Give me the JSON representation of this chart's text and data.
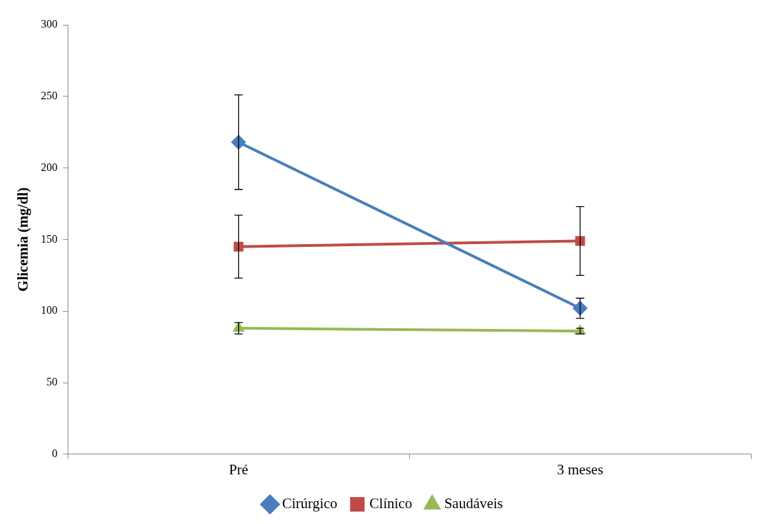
{
  "chart_data": {
    "type": "line",
    "ylabel": "Glicemia (mg/dl)",
    "categories": [
      "Pré",
      "3 meses"
    ],
    "series": [
      {
        "name": "Cirúrgico",
        "color": "#4a7ebb",
        "marker": "diamond",
        "values": [
          218,
          102
        ],
        "errors": [
          33,
          7
        ]
      },
      {
        "name": "Clínico",
        "color": "#be4b48",
        "marker": "square",
        "values": [
          145,
          149
        ],
        "errors": [
          22,
          24
        ]
      },
      {
        "name": "Saudáveis",
        "color": "#98b954",
        "marker": "triangle",
        "values": [
          88,
          86
        ],
        "errors": [
          4,
          2
        ]
      }
    ],
    "ylim": [
      0,
      300
    ],
    "yticks": [
      0,
      50,
      100,
      150,
      200,
      250,
      300
    ],
    "grid": false,
    "legend": "bottom"
  }
}
